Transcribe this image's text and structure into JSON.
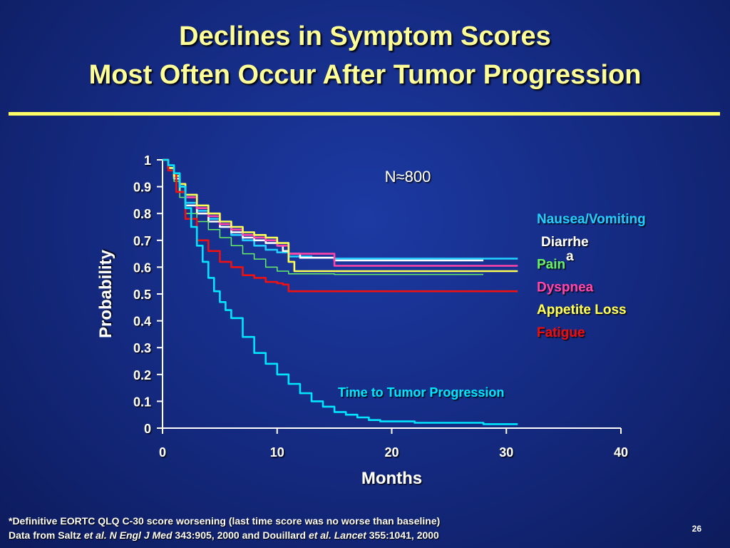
{
  "slide": {
    "title_line1": "Declines in Symptom Scores",
    "title_line2": "Most Often Occur After Tumor Progression",
    "footnote1": "*Definitive EORTC QLQ C-30 score worsening (last time score was no worse than baseline)",
    "footnote2_prefix": "Data from Saltz ",
    "footnote2_etal1": "et al. ",
    "footnote2_journal1": "N Engl J Med",
    "footnote2_mid": " 343:905, 2000 and Douillard ",
    "footnote2_etal2": "et al. ",
    "footnote2_journal2": "Lancet",
    "footnote2_suffix": " 355:1041, 2000",
    "page_number": "26"
  },
  "colors": {
    "title": "#ffff99",
    "nausea": "#22ccff",
    "diarrhea": "#ffffff",
    "pain": "#66ee66",
    "dyspnea": "#ff44aa",
    "appetite": "#ffff55",
    "fatigue": "#ee1111",
    "ttp": "#00e5ff"
  },
  "chart_data": {
    "type": "line",
    "title": "",
    "xlabel": "Months",
    "ylabel": "Probability",
    "xlim": [
      0,
      40
    ],
    "ylim": [
      0,
      1
    ],
    "xticks": [
      "0",
      "10",
      "20",
      "30",
      "40"
    ],
    "yticks": [
      "0",
      "0.1",
      "0.2",
      "0.3",
      "0.4",
      "0.5",
      "0.6",
      "0.7",
      "0.8",
      "0.9",
      "1"
    ],
    "annotation": "N≈800",
    "grid": false,
    "legend_position": "right",
    "series": [
      {
        "name": "Nausea/Vomiting",
        "color_key": "nausea",
        "x": [
          0,
          0.5,
          1,
          1.5,
          2,
          3,
          4,
          5,
          6,
          7,
          8,
          9,
          10,
          11,
          13,
          15,
          20,
          25,
          28,
          30,
          31
        ],
        "y": [
          1,
          0.97,
          0.94,
          0.9,
          0.84,
          0.81,
          0.78,
          0.75,
          0.72,
          0.7,
          0.68,
          0.665,
          0.655,
          0.64,
          0.635,
          0.632,
          0.632,
          0.632,
          0.632,
          0.632,
          0.632
        ]
      },
      {
        "name": "Diarrhea",
        "color_key": "diarrhea",
        "x": [
          0,
          0.5,
          1,
          1.5,
          2,
          3,
          4,
          5,
          6,
          7,
          8,
          9,
          10,
          10.5,
          11,
          12,
          15,
          20,
          25,
          28
        ],
        "y": [
          1,
          0.97,
          0.93,
          0.88,
          0.83,
          0.8,
          0.77,
          0.75,
          0.73,
          0.71,
          0.7,
          0.69,
          0.68,
          0.66,
          0.65,
          0.635,
          0.625,
          0.625,
          0.625,
          0.625
        ]
      },
      {
        "name": "Pain",
        "color_key": "pain",
        "x": [
          0,
          0.5,
          1,
          1.5,
          2,
          3,
          4,
          5,
          6,
          7,
          8,
          9,
          10,
          11,
          15,
          20,
          25,
          28
        ],
        "y": [
          1,
          0.96,
          0.92,
          0.86,
          0.8,
          0.77,
          0.74,
          0.71,
          0.68,
          0.65,
          0.63,
          0.6,
          0.585,
          0.575,
          0.573,
          0.573,
          0.573,
          0.573
        ]
      },
      {
        "name": "Dyspnea",
        "color_key": "dyspnea",
        "x": [
          0,
          0.5,
          1,
          1.5,
          2,
          3,
          4,
          5,
          6,
          7,
          8,
          9,
          10,
          11,
          12,
          13,
          14,
          15,
          20,
          25,
          30,
          31
        ],
        "y": [
          1,
          0.97,
          0.94,
          0.9,
          0.86,
          0.82,
          0.79,
          0.76,
          0.74,
          0.72,
          0.71,
          0.7,
          0.68,
          0.65,
          0.65,
          0.65,
          0.65,
          0.605,
          0.605,
          0.605,
          0.605,
          0.605
        ]
      },
      {
        "name": "Appetite Loss",
        "color_key": "appetite",
        "x": [
          0,
          0.5,
          1,
          1.5,
          2,
          3,
          4,
          5,
          6,
          7,
          8,
          9,
          10,
          11,
          11.5,
          15,
          20,
          25,
          30,
          31
        ],
        "y": [
          1,
          0.97,
          0.94,
          0.91,
          0.87,
          0.83,
          0.8,
          0.77,
          0.75,
          0.73,
          0.72,
          0.71,
          0.69,
          0.62,
          0.585,
          0.585,
          0.585,
          0.585,
          0.585,
          0.585
        ]
      },
      {
        "name": "Fatigue",
        "color_key": "fatigue",
        "x": [
          0,
          0.5,
          1,
          1.2,
          2,
          3,
          4,
          5,
          6,
          7,
          8,
          9,
          10,
          10.5,
          11,
          15,
          20,
          25,
          30,
          31
        ],
        "y": [
          1,
          0.96,
          0.95,
          0.88,
          0.78,
          0.7,
          0.66,
          0.62,
          0.6,
          0.57,
          0.56,
          0.545,
          0.54,
          0.535,
          0.51,
          0.51,
          0.51,
          0.51,
          0.51,
          0.51
        ]
      },
      {
        "name": "Time to Tumor Progression",
        "color_key": "ttp",
        "x": [
          0,
          0.5,
          1,
          1.5,
          2,
          2.5,
          3,
          3.5,
          4,
          4.5,
          5,
          5.5,
          6,
          7,
          8,
          9,
          10,
          11,
          12,
          13,
          14,
          15,
          16,
          17,
          18,
          19,
          20,
          22,
          25,
          28,
          31
        ],
        "y": [
          1,
          0.98,
          0.95,
          0.9,
          0.82,
          0.75,
          0.68,
          0.62,
          0.56,
          0.51,
          0.47,
          0.44,
          0.41,
          0.34,
          0.28,
          0.24,
          0.2,
          0.165,
          0.13,
          0.1,
          0.08,
          0.06,
          0.05,
          0.04,
          0.03,
          0.025,
          0.025,
          0.02,
          0.02,
          0.015,
          0.015
        ]
      }
    ],
    "legend": [
      {
        "label": "Nausea/Vomiting",
        "color_key": "nausea"
      },
      {
        "label": "Diarrhe",
        "label_wrap": "a",
        "color_key": "diarrhea"
      },
      {
        "label": "Pain",
        "color_key": "pain"
      },
      {
        "label": "Dyspnea",
        "color_key": "dyspnea"
      },
      {
        "label": "Appetite Loss",
        "color_key": "appetite"
      },
      {
        "label": "Fatigue",
        "color_key": "fatigue"
      }
    ],
    "series_label": "Time to Tumor Progression"
  }
}
